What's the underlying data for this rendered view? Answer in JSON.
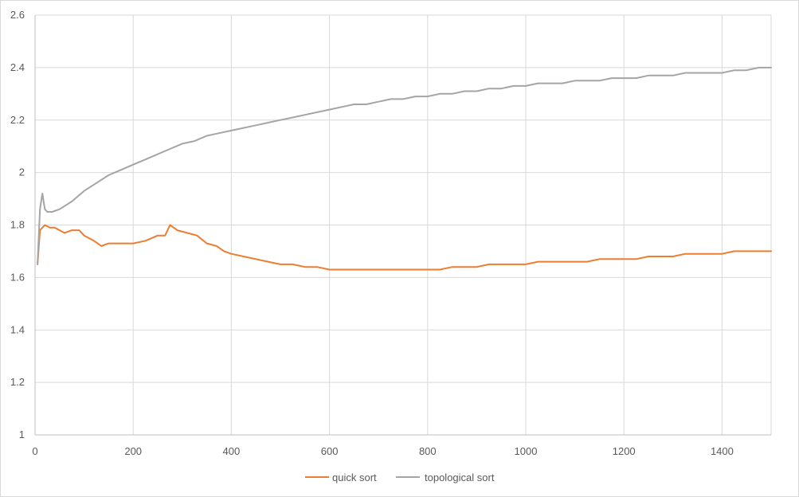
{
  "chart_data": {
    "type": "line",
    "title": "",
    "xlabel": "",
    "ylabel": "",
    "xlim": [
      0,
      1500
    ],
    "ylim": [
      1,
      2.6
    ],
    "x_ticks": [
      0,
      200,
      400,
      600,
      800,
      1000,
      1200,
      1400
    ],
    "x_tick_labels": [
      "0",
      "200",
      "400",
      "600",
      "800",
      "1000",
      "1200",
      "1400"
    ],
    "y_ticks": [
      1,
      1.2,
      1.4,
      1.6,
      1.8,
      2,
      2.2,
      2.4,
      2.6
    ],
    "y_tick_labels": [
      "1",
      "1.2",
      "1.4",
      "1.6",
      "1.8",
      "2",
      "2.2",
      "2.4",
      "2.6"
    ],
    "grid": {
      "vertical": true,
      "horizontal": true
    },
    "legend_position": "bottom",
    "series": [
      {
        "name": "quick sort",
        "color": "#ed7d31",
        "points": [
          [
            5,
            1.65
          ],
          [
            10,
            1.78
          ],
          [
            20,
            1.8
          ],
          [
            30,
            1.79
          ],
          [
            40,
            1.79
          ],
          [
            50,
            1.78
          ],
          [
            60,
            1.77
          ],
          [
            75,
            1.78
          ],
          [
            90,
            1.78
          ],
          [
            100,
            1.76
          ],
          [
            120,
            1.74
          ],
          [
            135,
            1.72
          ],
          [
            150,
            1.73
          ],
          [
            175,
            1.73
          ],
          [
            200,
            1.73
          ],
          [
            225,
            1.74
          ],
          [
            250,
            1.76
          ],
          [
            265,
            1.76
          ],
          [
            275,
            1.8
          ],
          [
            290,
            1.78
          ],
          [
            310,
            1.77
          ],
          [
            330,
            1.76
          ],
          [
            350,
            1.73
          ],
          [
            370,
            1.72
          ],
          [
            385,
            1.7
          ],
          [
            400,
            1.69
          ],
          [
            425,
            1.68
          ],
          [
            450,
            1.67
          ],
          [
            475,
            1.66
          ],
          [
            500,
            1.65
          ],
          [
            525,
            1.65
          ],
          [
            550,
            1.64
          ],
          [
            575,
            1.64
          ],
          [
            600,
            1.63
          ],
          [
            625,
            1.63
          ],
          [
            650,
            1.63
          ],
          [
            675,
            1.63
          ],
          [
            700,
            1.63
          ],
          [
            725,
            1.63
          ],
          [
            750,
            1.63
          ],
          [
            775,
            1.63
          ],
          [
            800,
            1.63
          ],
          [
            825,
            1.63
          ],
          [
            850,
            1.64
          ],
          [
            875,
            1.64
          ],
          [
            900,
            1.64
          ],
          [
            925,
            1.65
          ],
          [
            950,
            1.65
          ],
          [
            975,
            1.65
          ],
          [
            1000,
            1.65
          ],
          [
            1025,
            1.66
          ],
          [
            1050,
            1.66
          ],
          [
            1075,
            1.66
          ],
          [
            1100,
            1.66
          ],
          [
            1125,
            1.66
          ],
          [
            1150,
            1.67
          ],
          [
            1175,
            1.67
          ],
          [
            1200,
            1.67
          ],
          [
            1225,
            1.67
          ],
          [
            1250,
            1.68
          ],
          [
            1275,
            1.68
          ],
          [
            1300,
            1.68
          ],
          [
            1325,
            1.69
          ],
          [
            1350,
            1.69
          ],
          [
            1375,
            1.69
          ],
          [
            1400,
            1.69
          ],
          [
            1425,
            1.7
          ],
          [
            1450,
            1.7
          ],
          [
            1475,
            1.7
          ],
          [
            1500,
            1.7
          ]
        ]
      },
      {
        "name": "topological sort",
        "color": "#a5a5a5",
        "points": [
          [
            5,
            1.65
          ],
          [
            10,
            1.86
          ],
          [
            15,
            1.92
          ],
          [
            20,
            1.86
          ],
          [
            25,
            1.85
          ],
          [
            35,
            1.85
          ],
          [
            50,
            1.86
          ],
          [
            75,
            1.89
          ],
          [
            100,
            1.93
          ],
          [
            125,
            1.96
          ],
          [
            150,
            1.99
          ],
          [
            175,
            2.01
          ],
          [
            200,
            2.03
          ],
          [
            225,
            2.05
          ],
          [
            250,
            2.07
          ],
          [
            275,
            2.09
          ],
          [
            300,
            2.11
          ],
          [
            325,
            2.12
          ],
          [
            350,
            2.14
          ],
          [
            375,
            2.15
          ],
          [
            400,
            2.16
          ],
          [
            425,
            2.17
          ],
          [
            450,
            2.18
          ],
          [
            475,
            2.19
          ],
          [
            500,
            2.2
          ],
          [
            525,
            2.21
          ],
          [
            550,
            2.22
          ],
          [
            575,
            2.23
          ],
          [
            600,
            2.24
          ],
          [
            625,
            2.25
          ],
          [
            650,
            2.26
          ],
          [
            675,
            2.26
          ],
          [
            700,
            2.27
          ],
          [
            725,
            2.28
          ],
          [
            750,
            2.28
          ],
          [
            775,
            2.29
          ],
          [
            800,
            2.29
          ],
          [
            825,
            2.3
          ],
          [
            850,
            2.3
          ],
          [
            875,
            2.31
          ],
          [
            900,
            2.31
          ],
          [
            925,
            2.32
          ],
          [
            950,
            2.32
          ],
          [
            975,
            2.33
          ],
          [
            1000,
            2.33
          ],
          [
            1025,
            2.34
          ],
          [
            1050,
            2.34
          ],
          [
            1075,
            2.34
          ],
          [
            1100,
            2.35
          ],
          [
            1125,
            2.35
          ],
          [
            1150,
            2.35
          ],
          [
            1175,
            2.36
          ],
          [
            1200,
            2.36
          ],
          [
            1225,
            2.36
          ],
          [
            1250,
            2.37
          ],
          [
            1275,
            2.37
          ],
          [
            1300,
            2.37
          ],
          [
            1325,
            2.38
          ],
          [
            1350,
            2.38
          ],
          [
            1375,
            2.38
          ],
          [
            1400,
            2.38
          ],
          [
            1425,
            2.39
          ],
          [
            1450,
            2.39
          ],
          [
            1475,
            2.4
          ],
          [
            1500,
            2.4
          ]
        ]
      }
    ]
  },
  "style": {
    "grid_color": "#d9d9d9",
    "axis_color": "#bfbfbf",
    "text_color": "#595959"
  }
}
